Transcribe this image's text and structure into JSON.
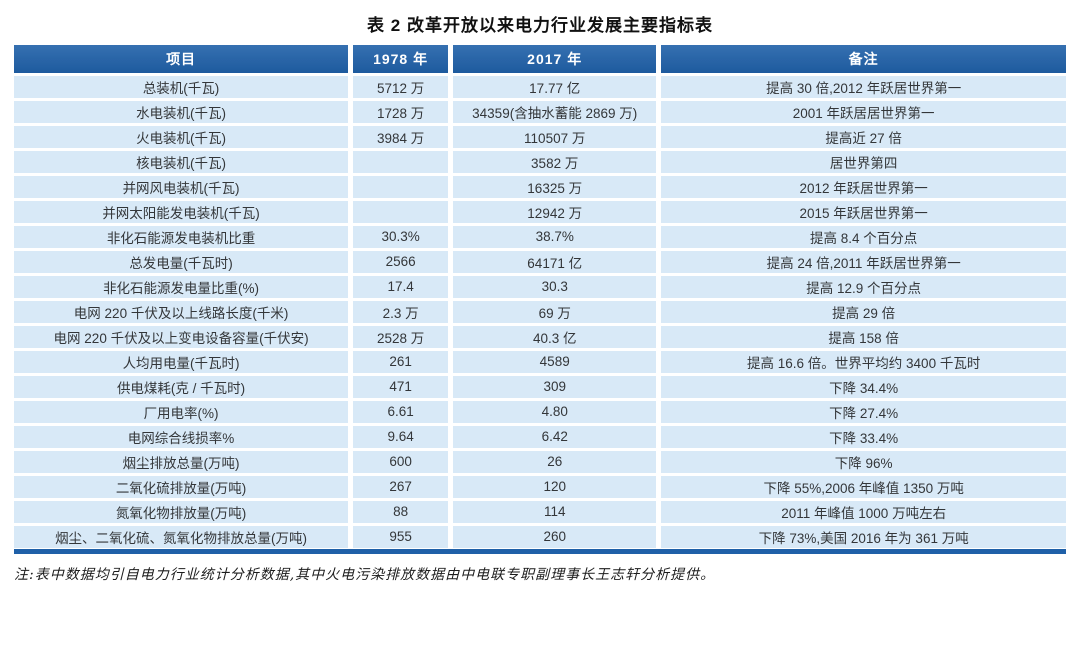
{
  "title": "表 2   改革开放以来电力行业发展主要指标表",
  "table": {
    "headers": [
      "项目",
      "1978 年",
      "2017 年",
      "备注"
    ],
    "col_widths": [
      "32%",
      "9.5%",
      "19.8%",
      "38.7%"
    ],
    "rows": [
      [
        "总装机(千瓦)",
        "5712 万",
        "17.77 亿",
        "提高 30 倍,2012 年跃居世界第一"
      ],
      [
        "水电装机(千瓦)",
        "1728 万",
        "34359(含抽水蓄能 2869 万)",
        "2001 年跃居居世界第一"
      ],
      [
        "火电装机(千瓦)",
        "3984 万",
        "110507 万",
        "提高近 27 倍"
      ],
      [
        "核电装机(千瓦)",
        "",
        "3582 万",
        "居世界第四"
      ],
      [
        "并网风电装机(千瓦)",
        "",
        "16325 万",
        "2012 年跃居世界第一"
      ],
      [
        "并网太阳能发电装机(千瓦)",
        "",
        "12942 万",
        "2015 年跃居世界第一"
      ],
      [
        "非化石能源发电装机比重",
        "30.3%",
        "38.7%",
        "提高 8.4 个百分点"
      ],
      [
        "总发电量(千瓦时)",
        "2566",
        "64171 亿",
        "提高 24 倍,2011 年跃居世界第一"
      ],
      [
        "非化石能源发电量比重(%)",
        "17.4",
        "30.3",
        "提高 12.9 个百分点"
      ],
      [
        "电网 220 千伏及以上线路长度(千米)",
        "2.3 万",
        "69 万",
        "提高 29 倍"
      ],
      [
        "电网 220 千伏及以上变电设备容量(千伏安)",
        "2528 万",
        "40.3 亿",
        "提高 158 倍"
      ],
      [
        "人均用电量(千瓦时)",
        "261",
        "4589",
        "提高 16.6 倍。世界平均约 3400 千瓦时"
      ],
      [
        "供电煤耗(克 / 千瓦时)",
        "471",
        "309",
        "下降 34.4%"
      ],
      [
        "厂用电率(%)",
        "6.61",
        "4.80",
        "下降 27.4%"
      ],
      [
        "电网综合线损率%",
        "9.64",
        "6.42",
        "下降 33.4%"
      ],
      [
        "烟尘排放总量(万吨)",
        "600",
        "26",
        "下降 96%"
      ],
      [
        "二氧化硫排放量(万吨)",
        "267",
        "120",
        "下降 55%,2006 年峰值 1350 万吨"
      ],
      [
        "氮氧化物排放量(万吨)",
        "88",
        "114",
        "2011 年峰值 1000 万吨左右"
      ],
      [
        "烟尘、二氧化硫、氮氧化物排放总量(万吨)",
        "955",
        "260",
        "下降 73%,美国 2016 年为 361 万吨"
      ]
    ]
  },
  "footnote": "注:表中数据均引自电力行业统计分析数据,其中火电污染排放数据由中电联专职副理事长王志轩分析提供。",
  "colors": {
    "header_bg": "#1f60a8",
    "row_bg": "#d8e9f7",
    "accent": "#1f60a8"
  }
}
